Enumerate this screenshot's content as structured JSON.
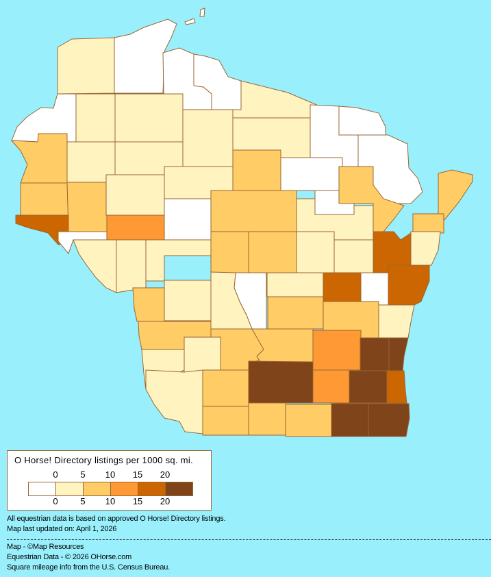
{
  "map": {
    "border_color": "#996633",
    "water_color": "#99f0fc",
    "county_bins": [
      1,
      0,
      0,
      0,
      0,
      2,
      1,
      1,
      1,
      1,
      1,
      2,
      2,
      1,
      1,
      0,
      2,
      4,
      3,
      0,
      1,
      1,
      0,
      0,
      0,
      0,
      2,
      1,
      0,
      2,
      2,
      2,
      2,
      1,
      4,
      1,
      1,
      2,
      2,
      4,
      0,
      4,
      1,
      1,
      2,
      0,
      1,
      1,
      1,
      1,
      1,
      2,
      2,
      1,
      1,
      2,
      2,
      3,
      2,
      5,
      5,
      5,
      3,
      5,
      4,
      1,
      2,
      2,
      2,
      2,
      5,
      5,
      0,
      0
    ]
  },
  "legend": {
    "title": "O Horse! Directory listings per 1000 sq. mi.",
    "top_ticks": [
      "0",
      "5",
      "10",
      "15",
      "20"
    ],
    "bottom_ticks": [
      "0",
      "5",
      "10",
      "15",
      "20"
    ],
    "colors": [
      "#ffffff",
      "#fff3c0",
      "#ffcc66",
      "#ff9933",
      "#cc6600",
      "#7f4419"
    ]
  },
  "notes": {
    "data_basis": "All equestrian data is based on approved O Horse! Directory listings.",
    "updated": "Map last updated on: April 1, 2026"
  },
  "credits": {
    "map": "Map - ©Map Resources",
    "data": "Equestrian Data - © 2026 OHorse.com",
    "census": "Square mileage info from the U.S. Census Bureau."
  }
}
